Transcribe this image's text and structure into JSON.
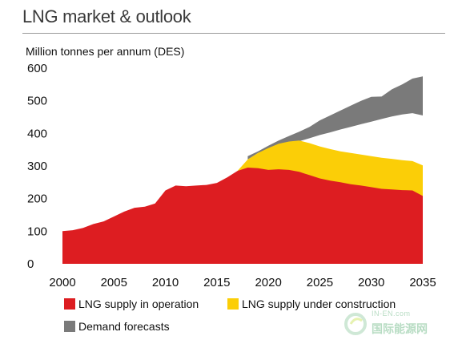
{
  "title": "LNG market & outlook",
  "ylabel": "Million tonnes per annum (DES)",
  "colors": {
    "operation": "#dd1d21",
    "construction": "#fbce07",
    "demand": "#7a7a7a"
  },
  "legend": {
    "operation": "LNG supply in operation",
    "construction": "LNG supply under construction",
    "demand": "Demand forecasts"
  },
  "watermark": {
    "top": "IN-EN.com",
    "bottom": "国际能源网"
  },
  "chart_data": {
    "type": "area",
    "xlabel": "",
    "ylabel": "Million tonnes per annum (DES)",
    "xlim": [
      2000,
      2035
    ],
    "ylim": [
      0,
      600
    ],
    "xticks": [
      2000,
      2005,
      2010,
      2015,
      2020,
      2025,
      2030,
      2035
    ],
    "yticks": [
      0,
      100,
      200,
      300,
      400,
      500,
      600
    ],
    "grid": false,
    "legend_position": "bottom",
    "series": [
      {
        "name": "LNG supply in operation",
        "x": [
          2000,
          2001,
          2002,
          2003,
          2004,
          2005,
          2006,
          2007,
          2008,
          2009,
          2010,
          2011,
          2012,
          2013,
          2014,
          2015,
          2016,
          2017,
          2018,
          2019,
          2020,
          2021,
          2022,
          2023,
          2024,
          2025,
          2026,
          2027,
          2028,
          2029,
          2030,
          2031,
          2032,
          2033,
          2034,
          2035
        ],
        "values": [
          100,
          103,
          110,
          122,
          130,
          145,
          160,
          172,
          175,
          185,
          225,
          240,
          238,
          240,
          242,
          248,
          265,
          285,
          295,
          293,
          288,
          290,
          288,
          282,
          272,
          262,
          255,
          250,
          244,
          240,
          235,
          230,
          228,
          226,
          225,
          208
        ]
      },
      {
        "name": "LNG supply under construction",
        "x": [
          2017,
          2018,
          2019,
          2020,
          2021,
          2022,
          2023,
          2024,
          2025,
          2026,
          2027,
          2028,
          2029,
          2030,
          2031,
          2032,
          2033,
          2034,
          2035
        ],
        "values": [
          285,
          320,
          340,
          355,
          368,
          375,
          378,
          370,
          360,
          352,
          345,
          340,
          335,
          330,
          325,
          322,
          318,
          315,
          302
        ]
      },
      {
        "name": "Demand forecasts",
        "x": [
          2018,
          2019,
          2020,
          2021,
          2022,
          2023,
          2024,
          2025,
          2026,
          2027,
          2028,
          2029,
          2030,
          2031,
          2032,
          2033,
          2034,
          2035
        ],
        "low": [
          320,
          340,
          352,
          360,
          368,
          376,
          385,
          395,
          403,
          412,
          420,
          428,
          436,
          444,
          452,
          458,
          462,
          455
        ],
        "high": [
          330,
          345,
          362,
          378,
          392,
          405,
          420,
          440,
          455,
          470,
          485,
          500,
          512,
          513,
          535,
          550,
          568,
          575
        ]
      }
    ]
  }
}
